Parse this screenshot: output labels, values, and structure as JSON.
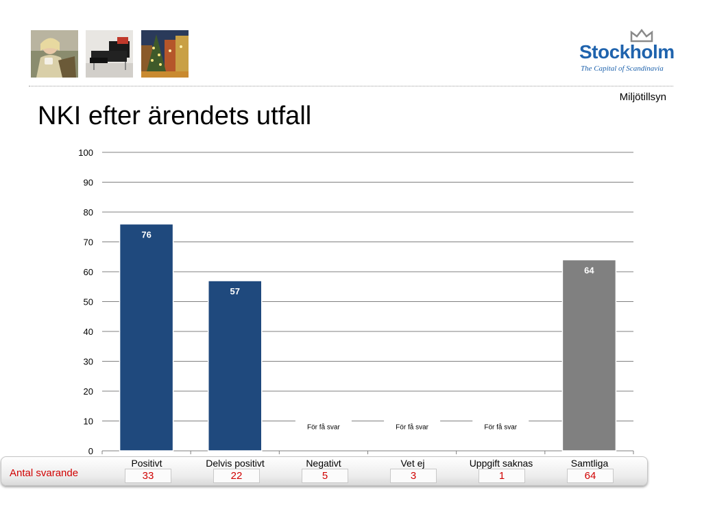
{
  "header": {
    "photos": [
      {
        "name": "woman-with-cup-photo"
      },
      {
        "name": "black-armchair-photo"
      },
      {
        "name": "christmas-tree-square-photo"
      }
    ],
    "logo": {
      "name": "Stockholm",
      "tagline": "The Capital of Scandinavia",
      "color": "#1f63ad"
    },
    "unit": "Miljötillsyn"
  },
  "title": "NKI efter ärendets utfall",
  "chart_data": {
    "type": "bar",
    "title": "NKI efter ärendets utfall",
    "xlabel": "",
    "ylabel": "",
    "ylim": [
      0,
      100
    ],
    "yticks": [
      0,
      10,
      20,
      30,
      40,
      50,
      60,
      70,
      80,
      90,
      100
    ],
    "grid": true,
    "legend": "none",
    "categories": [
      "Positivt",
      "Delvis positivt",
      "Negativt",
      "Vet ej",
      "Uppgift saknas",
      "Samtliga"
    ],
    "values": [
      76,
      57,
      null,
      null,
      null,
      64
    ],
    "data_labels": [
      "76",
      "57",
      "För få svar",
      "För få svar",
      "För få svar",
      "64"
    ],
    "bar_colors": [
      "#1f497d",
      "#1f497d",
      null,
      null,
      null,
      "#808080"
    ]
  },
  "table": {
    "row_label": "Antal svarande",
    "counts": [
      "33",
      "22",
      "5",
      "3",
      "1",
      "64"
    ],
    "text_color": "#d00000"
  }
}
